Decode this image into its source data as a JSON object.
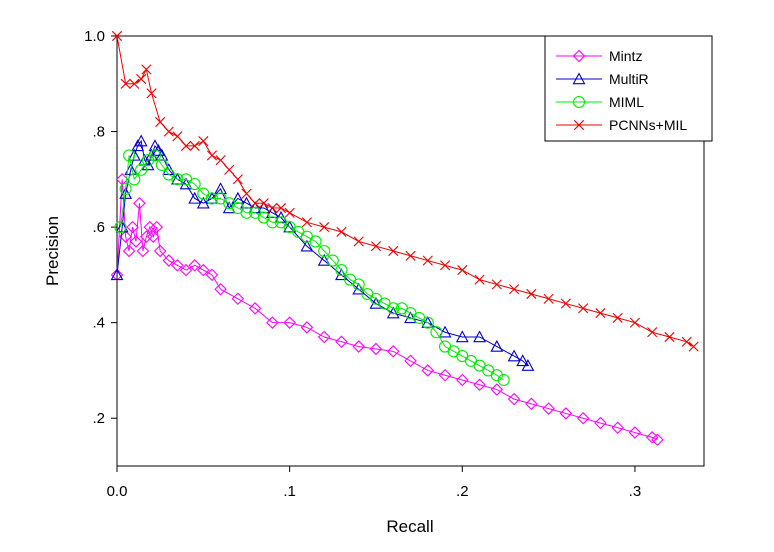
{
  "chart_data": {
    "type": "line",
    "title": "",
    "xlabel": "Recall",
    "ylabel": "Precision",
    "xlim": [
      0.0,
      0.34
    ],
    "ylim": [
      0.1,
      1.0
    ],
    "x_ticks": [
      0.0,
      0.1,
      0.2,
      0.3
    ],
    "x_tick_labels": [
      "0.0",
      ".1",
      ".2",
      ".3"
    ],
    "y_ticks": [
      0.2,
      0.4,
      0.6,
      0.8,
      1.0
    ],
    "y_tick_labels": [
      ".2",
      ".4",
      ".6",
      ".8",
      "1.0"
    ],
    "grid": false,
    "legend_position": "top-right",
    "series": [
      {
        "name": "Mintz",
        "color": "#ff00ff",
        "marker": "diamond",
        "points": [
          [
            0.0,
            0.5
          ],
          [
            0.003,
            0.7
          ],
          [
            0.005,
            0.58
          ],
          [
            0.007,
            0.55
          ],
          [
            0.009,
            0.6
          ],
          [
            0.011,
            0.57
          ],
          [
            0.013,
            0.65
          ],
          [
            0.015,
            0.55
          ],
          [
            0.017,
            0.58
          ],
          [
            0.019,
            0.6
          ],
          [
            0.021,
            0.58
          ],
          [
            0.023,
            0.6
          ],
          [
            0.025,
            0.55
          ],
          [
            0.03,
            0.53
          ],
          [
            0.035,
            0.52
          ],
          [
            0.04,
            0.51
          ],
          [
            0.045,
            0.52
          ],
          [
            0.05,
            0.51
          ],
          [
            0.055,
            0.5
          ],
          [
            0.06,
            0.47
          ],
          [
            0.07,
            0.45
          ],
          [
            0.08,
            0.43
          ],
          [
            0.09,
            0.4
          ],
          [
            0.1,
            0.4
          ],
          [
            0.11,
            0.39
          ],
          [
            0.12,
            0.37
          ],
          [
            0.13,
            0.36
          ],
          [
            0.14,
            0.35
          ],
          [
            0.15,
            0.345
          ],
          [
            0.16,
            0.34
          ],
          [
            0.17,
            0.32
          ],
          [
            0.18,
            0.3
          ],
          [
            0.19,
            0.29
          ],
          [
            0.2,
            0.28
          ],
          [
            0.21,
            0.27
          ],
          [
            0.22,
            0.26
          ],
          [
            0.23,
            0.24
          ],
          [
            0.24,
            0.23
          ],
          [
            0.25,
            0.22
          ],
          [
            0.26,
            0.21
          ],
          [
            0.27,
            0.2
          ],
          [
            0.28,
            0.19
          ],
          [
            0.29,
            0.18
          ],
          [
            0.3,
            0.17
          ],
          [
            0.31,
            0.16
          ],
          [
            0.313,
            0.155
          ]
        ]
      },
      {
        "name": "MultiR",
        "color": "#0000cc",
        "marker": "triangle",
        "points": [
          [
            0.0,
            0.5
          ],
          [
            0.003,
            0.6
          ],
          [
            0.005,
            0.67
          ],
          [
            0.008,
            0.72
          ],
          [
            0.01,
            0.75
          ],
          [
            0.012,
            0.77
          ],
          [
            0.014,
            0.78
          ],
          [
            0.016,
            0.74
          ],
          [
            0.018,
            0.73
          ],
          [
            0.02,
            0.75
          ],
          [
            0.022,
            0.77
          ],
          [
            0.024,
            0.76
          ],
          [
            0.026,
            0.75
          ],
          [
            0.03,
            0.72
          ],
          [
            0.035,
            0.7
          ],
          [
            0.04,
            0.69
          ],
          [
            0.045,
            0.66
          ],
          [
            0.05,
            0.65
          ],
          [
            0.055,
            0.66
          ],
          [
            0.06,
            0.68
          ],
          [
            0.065,
            0.64
          ],
          [
            0.07,
            0.66
          ],
          [
            0.075,
            0.65
          ],
          [
            0.08,
            0.64
          ],
          [
            0.085,
            0.64
          ],
          [
            0.09,
            0.63
          ],
          [
            0.095,
            0.62
          ],
          [
            0.1,
            0.6
          ],
          [
            0.11,
            0.56
          ],
          [
            0.12,
            0.53
          ],
          [
            0.13,
            0.5
          ],
          [
            0.14,
            0.47
          ],
          [
            0.15,
            0.44
          ],
          [
            0.16,
            0.42
          ],
          [
            0.17,
            0.41
          ],
          [
            0.18,
            0.4
          ],
          [
            0.19,
            0.38
          ],
          [
            0.2,
            0.37
          ],
          [
            0.21,
            0.37
          ],
          [
            0.22,
            0.35
          ],
          [
            0.23,
            0.33
          ],
          [
            0.235,
            0.32
          ],
          [
            0.238,
            0.31
          ]
        ]
      },
      {
        "name": "MIML",
        "color": "#00ee00",
        "marker": "circle",
        "points": [
          [
            0.002,
            0.6
          ],
          [
            0.005,
            0.68
          ],
          [
            0.007,
            0.75
          ],
          [
            0.01,
            0.7
          ],
          [
            0.014,
            0.72
          ],
          [
            0.018,
            0.74
          ],
          [
            0.022,
            0.75
          ],
          [
            0.026,
            0.73
          ],
          [
            0.03,
            0.71
          ],
          [
            0.035,
            0.7
          ],
          [
            0.04,
            0.7
          ],
          [
            0.045,
            0.69
          ],
          [
            0.05,
            0.67
          ],
          [
            0.055,
            0.66
          ],
          [
            0.06,
            0.66
          ],
          [
            0.065,
            0.65
          ],
          [
            0.07,
            0.64
          ],
          [
            0.075,
            0.63
          ],
          [
            0.08,
            0.63
          ],
          [
            0.085,
            0.62
          ],
          [
            0.09,
            0.61
          ],
          [
            0.095,
            0.61
          ],
          [
            0.1,
            0.6
          ],
          [
            0.105,
            0.59
          ],
          [
            0.11,
            0.58
          ],
          [
            0.115,
            0.57
          ],
          [
            0.12,
            0.55
          ],
          [
            0.125,
            0.53
          ],
          [
            0.13,
            0.51
          ],
          [
            0.135,
            0.49
          ],
          [
            0.14,
            0.48
          ],
          [
            0.145,
            0.46
          ],
          [
            0.15,
            0.45
          ],
          [
            0.155,
            0.44
          ],
          [
            0.16,
            0.43
          ],
          [
            0.165,
            0.43
          ],
          [
            0.17,
            0.42
          ],
          [
            0.175,
            0.41
          ],
          [
            0.18,
            0.4
          ],
          [
            0.185,
            0.38
          ],
          [
            0.19,
            0.35
          ],
          [
            0.195,
            0.34
          ],
          [
            0.2,
            0.33
          ],
          [
            0.205,
            0.32
          ],
          [
            0.21,
            0.31
          ],
          [
            0.215,
            0.3
          ],
          [
            0.22,
            0.29
          ],
          [
            0.224,
            0.28
          ]
        ]
      },
      {
        "name": "PCNNs+MIL",
        "color": "#ee0000",
        "marker": "x",
        "points": [
          [
            0.0,
            1.0
          ],
          [
            0.005,
            0.9
          ],
          [
            0.01,
            0.9
          ],
          [
            0.014,
            0.91
          ],
          [
            0.017,
            0.93
          ],
          [
            0.02,
            0.88
          ],
          [
            0.025,
            0.82
          ],
          [
            0.03,
            0.8
          ],
          [
            0.035,
            0.79
          ],
          [
            0.04,
            0.77
          ],
          [
            0.045,
            0.77
          ],
          [
            0.05,
            0.78
          ],
          [
            0.055,
            0.75
          ],
          [
            0.06,
            0.74
          ],
          [
            0.065,
            0.72
          ],
          [
            0.07,
            0.7
          ],
          [
            0.075,
            0.67
          ],
          [
            0.08,
            0.65
          ],
          [
            0.085,
            0.65
          ],
          [
            0.09,
            0.64
          ],
          [
            0.095,
            0.64
          ],
          [
            0.1,
            0.63
          ],
          [
            0.11,
            0.61
          ],
          [
            0.12,
            0.6
          ],
          [
            0.13,
            0.59
          ],
          [
            0.14,
            0.57
          ],
          [
            0.15,
            0.56
          ],
          [
            0.16,
            0.55
          ],
          [
            0.17,
            0.54
          ],
          [
            0.18,
            0.53
          ],
          [
            0.19,
            0.52
          ],
          [
            0.2,
            0.51
          ],
          [
            0.21,
            0.49
          ],
          [
            0.22,
            0.48
          ],
          [
            0.23,
            0.47
          ],
          [
            0.24,
            0.46
          ],
          [
            0.25,
            0.45
          ],
          [
            0.26,
            0.44
          ],
          [
            0.27,
            0.43
          ],
          [
            0.28,
            0.42
          ],
          [
            0.29,
            0.41
          ],
          [
            0.3,
            0.4
          ],
          [
            0.31,
            0.38
          ],
          [
            0.32,
            0.37
          ],
          [
            0.33,
            0.36
          ],
          [
            0.334,
            0.35
          ]
        ]
      }
    ]
  }
}
